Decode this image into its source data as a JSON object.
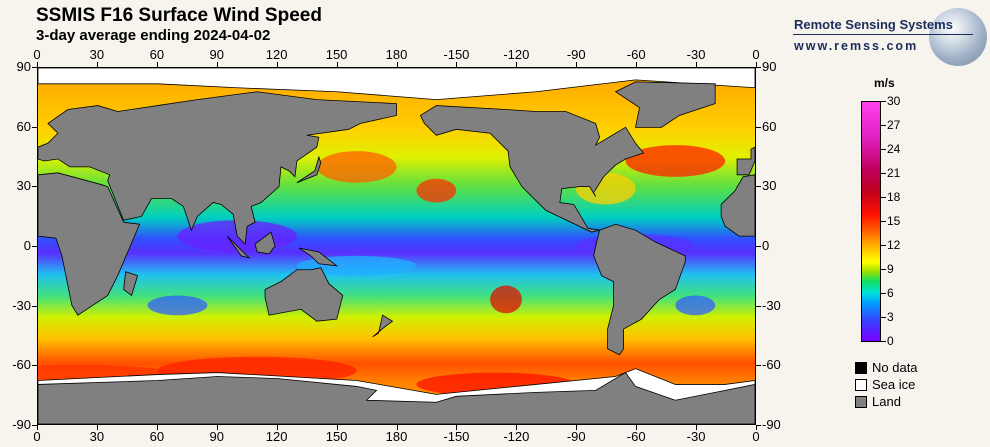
{
  "header": {
    "title": "SSMIS F16 Surface Wind Speed",
    "subtitle": "3-day average ending 2024-04-02"
  },
  "logo": {
    "name": "Remote Sensing Systems",
    "url": "www.remss.com",
    "icon": "globe-icon"
  },
  "axes": {
    "lon_ticks": [
      "0",
      "30",
      "60",
      "90",
      "120",
      "150",
      "180",
      "-150",
      "-120",
      "-90",
      "-60",
      "-30",
      "0"
    ],
    "lat_ticks": [
      "90",
      "60",
      "30",
      "0",
      "-30",
      "-60",
      "-90"
    ]
  },
  "colorbar": {
    "units": "m/s",
    "ticks": [
      "0",
      "3",
      "6",
      "9",
      "12",
      "15",
      "18",
      "21",
      "24",
      "27",
      "30"
    ],
    "range": [
      0,
      30
    ]
  },
  "legend": [
    {
      "label": "No data",
      "color": "#000000"
    },
    {
      "label": "Sea ice",
      "color": "#ffffff"
    },
    {
      "label": "Land",
      "color": "#808080"
    }
  ],
  "colors": {
    "land": "#808080",
    "sea_ice": "#ffffff",
    "background": "#f7f4ee"
  }
}
